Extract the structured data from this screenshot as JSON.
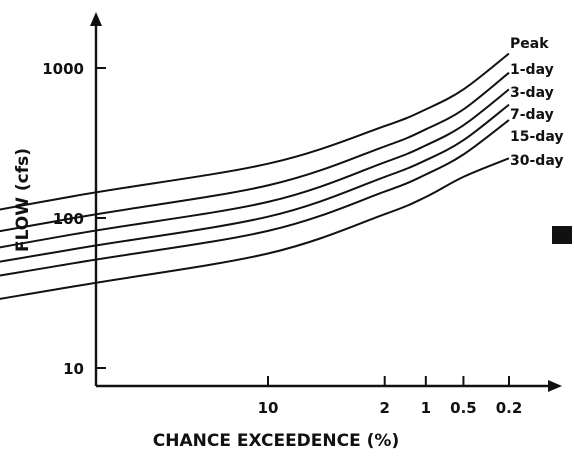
{
  "chart_data": {
    "type": "line",
    "title": "",
    "xlabel": "CHANCE EXCEEDENCE (%)",
    "ylabel": "FLOW (cfs)",
    "x_scale": "probability (reversed)",
    "y_scale": "log",
    "grid": false,
    "legend": "labels at right end of each curve",
    "ylim": [
      9,
      1800
    ],
    "x_ticks": [
      "10",
      "2",
      "1",
      "0.5",
      "0.2"
    ],
    "y_ticks": [
      "10",
      "100",
      "1000"
    ],
    "x": [
      99,
      90,
      50,
      10,
      2,
      1,
      0.5,
      0.2
    ],
    "series": [
      {
        "name": "Peak",
        "values": [
          48,
          80,
          140,
          230,
          410,
          530,
          720,
          1250
        ]
      },
      {
        "name": "1-day",
        "values": [
          34,
          58,
          100,
          165,
          300,
          390,
          530,
          930
        ]
      },
      {
        "name": "3-day",
        "values": [
          27,
          45,
          78,
          128,
          235,
          305,
          415,
          720
        ]
      },
      {
        "name": "7-day",
        "values": [
          22,
          37,
          62,
          102,
          188,
          243,
          330,
          570
        ]
      },
      {
        "name": "15-day",
        "values": [
          18,
          30,
          50,
          82,
          150,
          195,
          265,
          450
        ]
      },
      {
        "name": "30-day",
        "values": [
          13,
          21,
          35,
          58,
          106,
          138,
          188,
          250
        ]
      }
    ]
  }
}
